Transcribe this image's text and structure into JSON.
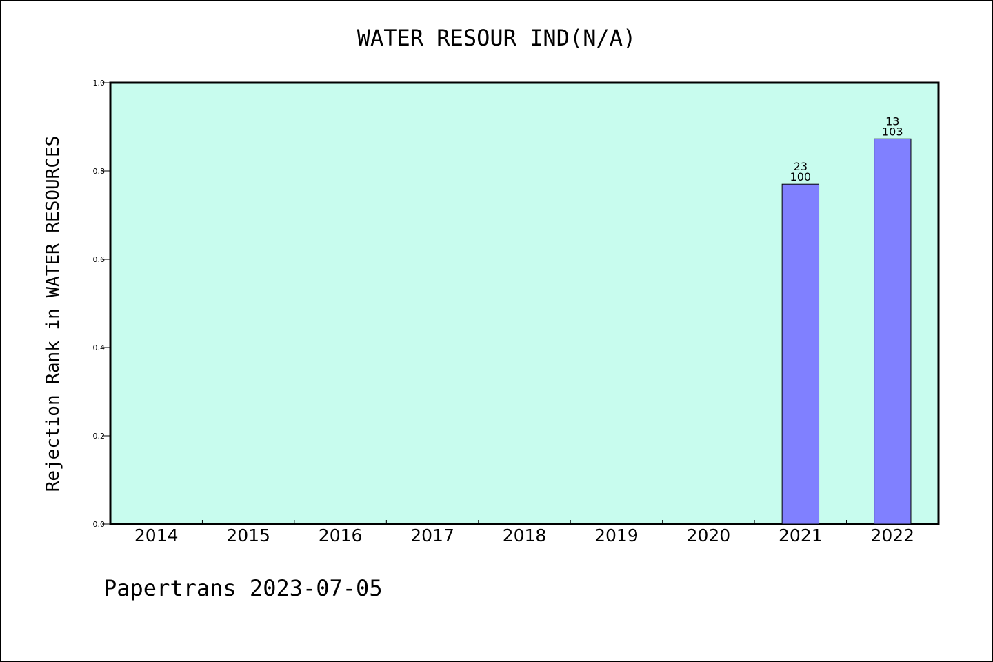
{
  "chart_data": {
    "type": "bar",
    "title": "WATER RESOUR IND(N/A)",
    "ylabel": "Rejection Rank in WATER RESOURCES",
    "xlabel": "",
    "ylim": [
      0,
      1.0
    ],
    "yticks": [
      "0.0",
      "0.2",
      "0.4",
      "0.6",
      "0.8",
      "1.0"
    ],
    "categories": [
      "2014",
      "2015",
      "2016",
      "2017",
      "2018",
      "2019",
      "2020",
      "2021",
      "2022"
    ],
    "values": [
      null,
      null,
      null,
      null,
      null,
      null,
      null,
      0.77,
      0.873
    ],
    "bar_labels": [
      null,
      null,
      null,
      null,
      null,
      null,
      null,
      {
        "top": "23",
        "bottom": "100"
      },
      {
        "top": "13",
        "bottom": "103"
      }
    ],
    "grid": false,
    "colors": {
      "plot_bg": "#c8fcee",
      "bar": "#8080ff"
    }
  },
  "footer": "Papertrans 2023-07-05"
}
